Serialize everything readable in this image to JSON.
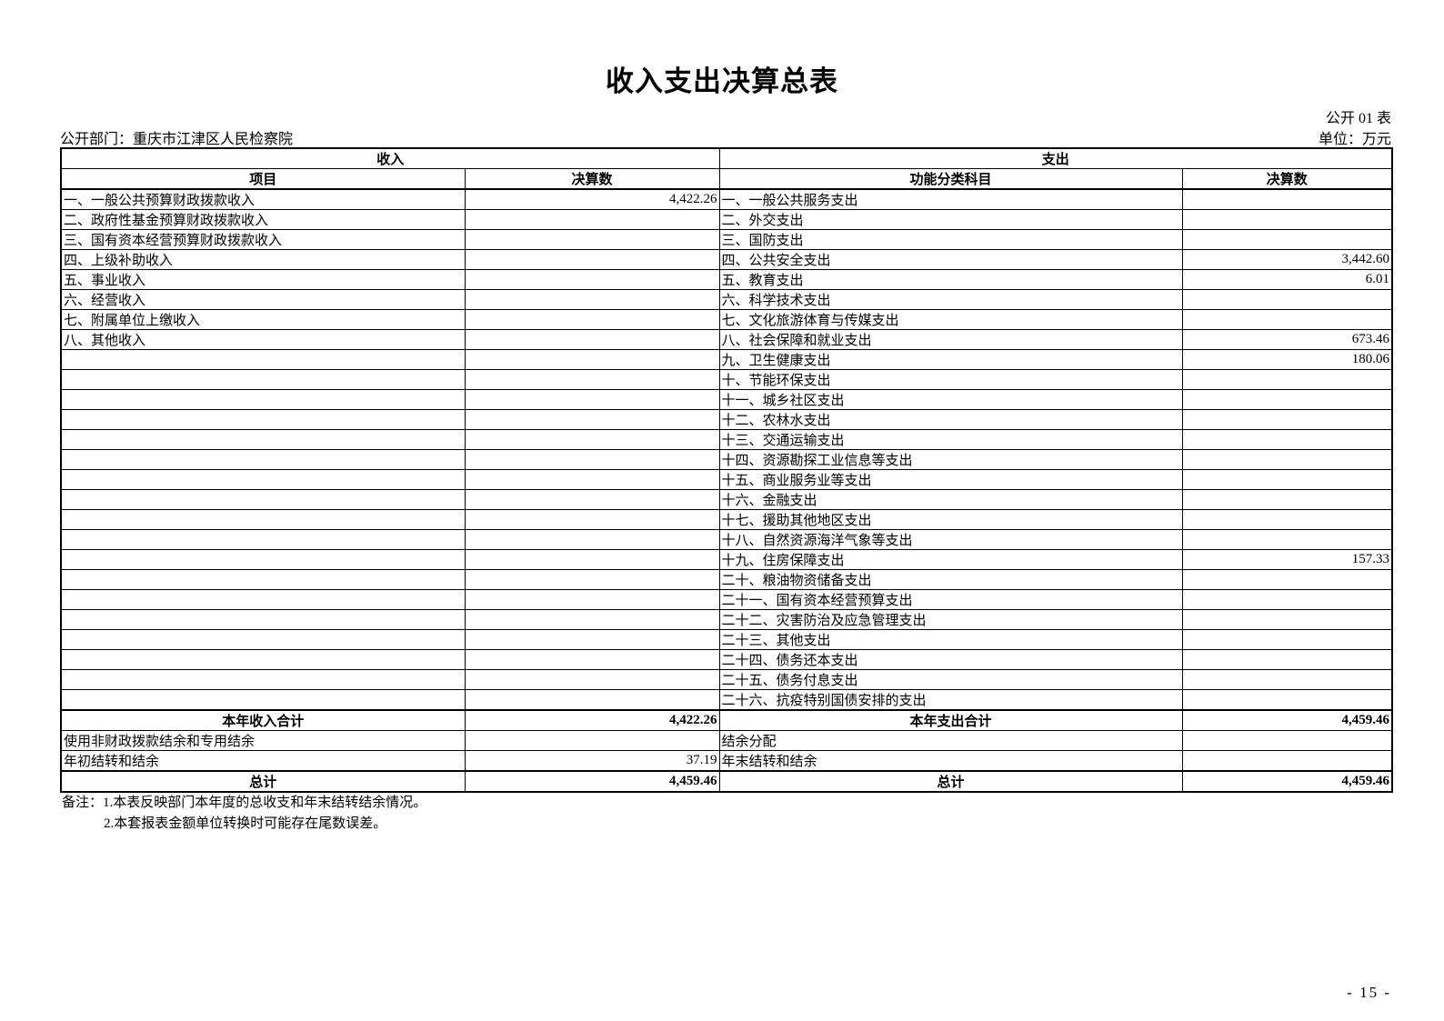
{
  "page": {
    "title": "收入支出决算总表",
    "table_code": "公开 01 表",
    "department": "公开部门：重庆市江津区人民检察院",
    "unit": "单位：万元",
    "page_number": "- 15 -"
  },
  "table": {
    "headers": {
      "income_group": "收入",
      "expense_group": "支出",
      "income_item": "项目",
      "income_amount": "决算数",
      "expense_item": "功能分类科目",
      "expense_amount": "决算数"
    },
    "rows": [
      {
        "income_label": "一、一般公共预算财政拨款收入",
        "income_value": "4,422.26",
        "expense_label": "一、一般公共服务支出",
        "expense_value": ""
      },
      {
        "income_label": "二、政府性基金预算财政拨款收入",
        "income_value": "",
        "expense_label": "二、外交支出",
        "expense_value": ""
      },
      {
        "income_label": "三、国有资本经营预算财政拨款收入",
        "income_value": "",
        "expense_label": "三、国防支出",
        "expense_value": ""
      },
      {
        "income_label": "四、上级补助收入",
        "income_value": "",
        "expense_label": "四、公共安全支出",
        "expense_value": "3,442.60"
      },
      {
        "income_label": "五、事业收入",
        "income_value": "",
        "expense_label": "五、教育支出",
        "expense_value": "6.01"
      },
      {
        "income_label": "六、经营收入",
        "income_value": "",
        "expense_label": "六、科学技术支出",
        "expense_value": ""
      },
      {
        "income_label": "七、附属单位上缴收入",
        "income_value": "",
        "expense_label": "七、文化旅游体育与传媒支出",
        "expense_value": ""
      },
      {
        "income_label": "八、其他收入",
        "income_value": "",
        "expense_label": "八、社会保障和就业支出",
        "expense_value": "673.46"
      },
      {
        "income_label": "",
        "income_value": "",
        "expense_label": "九、卫生健康支出",
        "expense_value": "180.06"
      },
      {
        "income_label": "",
        "income_value": "",
        "expense_label": "十、节能环保支出",
        "expense_value": ""
      },
      {
        "income_label": "",
        "income_value": "",
        "expense_label": "十一、城乡社区支出",
        "expense_value": ""
      },
      {
        "income_label": "",
        "income_value": "",
        "expense_label": "十二、农林水支出",
        "expense_value": ""
      },
      {
        "income_label": "",
        "income_value": "",
        "expense_label": "十三、交通运输支出",
        "expense_value": ""
      },
      {
        "income_label": "",
        "income_value": "",
        "expense_label": "十四、资源勘探工业信息等支出",
        "expense_value": ""
      },
      {
        "income_label": "",
        "income_value": "",
        "expense_label": "十五、商业服务业等支出",
        "expense_value": ""
      },
      {
        "income_label": "",
        "income_value": "",
        "expense_label": "十六、金融支出",
        "expense_value": ""
      },
      {
        "income_label": "",
        "income_value": "",
        "expense_label": "十七、援助其他地区支出",
        "expense_value": ""
      },
      {
        "income_label": "",
        "income_value": "",
        "expense_label": "十八、自然资源海洋气象等支出",
        "expense_value": ""
      },
      {
        "income_label": "",
        "income_value": "",
        "expense_label": "十九、住房保障支出",
        "expense_value": "157.33"
      },
      {
        "income_label": "",
        "income_value": "",
        "expense_label": "二十、粮油物资储备支出",
        "expense_value": ""
      },
      {
        "income_label": "",
        "income_value": "",
        "expense_label": "二十一、国有资本经营预算支出",
        "expense_value": ""
      },
      {
        "income_label": "",
        "income_value": "",
        "expense_label": "二十二、灾害防治及应急管理支出",
        "expense_value": ""
      },
      {
        "income_label": "",
        "income_value": "",
        "expense_label": "二十三、其他支出",
        "expense_value": ""
      },
      {
        "income_label": "",
        "income_value": "",
        "expense_label": "二十四、债务还本支出",
        "expense_value": ""
      },
      {
        "income_label": "",
        "income_value": "",
        "expense_label": "二十五、债务付息支出",
        "expense_value": ""
      },
      {
        "income_label": "",
        "income_value": "",
        "expense_label": "二十六、抗疫特别国债安排的支出",
        "expense_value": ""
      }
    ],
    "summary_rows": [
      {
        "income_label": "本年收入合计",
        "income_value": "4,422.26",
        "expense_label": "本年支出合计",
        "expense_value": "4,459.46",
        "emphasis": true
      },
      {
        "income_label": "使用非财政拨款结余和专用结余",
        "income_value": "",
        "expense_label": "结余分配",
        "expense_value": "",
        "emphasis": false
      },
      {
        "income_label": "年初结转和结余",
        "income_value": "37.19",
        "expense_label": "年末结转和结余",
        "expense_value": "",
        "emphasis": false
      },
      {
        "income_label": "总计",
        "income_value": "4,459.46",
        "expense_label": "总计",
        "expense_value": "4,459.46",
        "emphasis": true
      }
    ]
  },
  "notes": [
    "备注：1.本表反映部门本年度的总收支和年末结转结余情况。",
    "2.本套报表金额单位转换时可能存在尾数误差。"
  ]
}
